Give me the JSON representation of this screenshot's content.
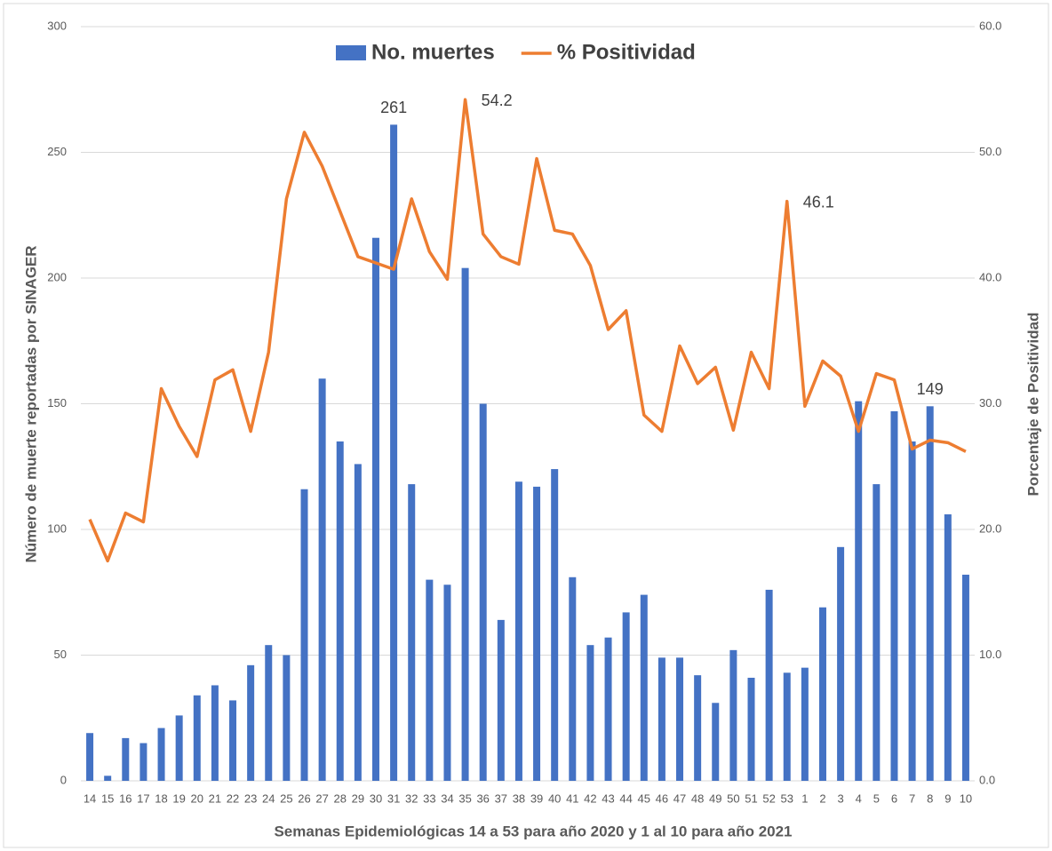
{
  "chart_data": {
    "type": "bar-line",
    "legend": "top",
    "grid": true,
    "x_label": "Semanas Epidemiológicas 14 a 53 para año 2020 y 1 al 10 para año 2021",
    "y_label": "Número de muerte reportadas por SINAGER",
    "y2_label": "Porcentaje de Positividad",
    "categories": [
      "14",
      "15",
      "16",
      "17",
      "18",
      "19",
      "20",
      "21",
      "22",
      "23",
      "24",
      "25",
      "26",
      "27",
      "28",
      "29",
      "30",
      "31",
      "32",
      "33",
      "34",
      "35",
      "36",
      "37",
      "38",
      "39",
      "40",
      "41",
      "42",
      "43",
      "44",
      "45",
      "46",
      "47",
      "48",
      "49",
      "50",
      "51",
      "52",
      "53",
      "1",
      "2",
      "3",
      "4",
      "5",
      "6",
      "7",
      "8",
      "9",
      "10"
    ],
    "ylim": [
      0,
      300
    ],
    "yticks": [
      0,
      50,
      100,
      150,
      200,
      250,
      300
    ],
    "y2lim": [
      0,
      60
    ],
    "y2ticks": [
      {
        "value": 0,
        "label": "0.0"
      },
      {
        "value": 10,
        "label": "10.0"
      },
      {
        "value": 20,
        "label": "20.0"
      },
      {
        "value": 30,
        "label": "30.0"
      },
      {
        "value": 40,
        "label": "40.0"
      },
      {
        "value": 50,
        "label": "50.0"
      },
      {
        "value": 60,
        "label": "60.0"
      }
    ],
    "series": [
      {
        "name": "No. muertes",
        "type": "bar",
        "color": "#4472c4",
        "values": [
          19,
          2,
          17,
          15,
          21,
          26,
          34,
          38,
          32,
          46,
          54,
          50,
          116,
          160,
          135,
          126,
          216,
          261,
          118,
          80,
          78,
          204,
          150,
          64,
          119,
          117,
          124,
          81,
          54,
          57,
          67,
          74,
          49,
          49,
          42,
          31,
          52,
          41,
          76,
          43,
          45,
          69,
          93,
          151,
          118,
          147,
          135,
          149,
          106,
          82
        ],
        "value_labels": [
          null,
          null,
          null,
          null,
          null,
          null,
          null,
          null,
          null,
          null,
          null,
          null,
          null,
          null,
          null,
          null,
          null,
          "261",
          null,
          null,
          null,
          null,
          null,
          null,
          null,
          null,
          null,
          null,
          null,
          null,
          null,
          null,
          null,
          null,
          null,
          null,
          null,
          null,
          null,
          null,
          null,
          null,
          null,
          null,
          null,
          null,
          null,
          "149",
          null,
          null
        ]
      },
      {
        "name": "% Positividad",
        "type": "line",
        "axis": "y2",
        "color": "#ed7d31",
        "values": [
          20.8,
          17.5,
          21.3,
          20.6,
          31.2,
          28.2,
          25.8,
          31.9,
          32.7,
          27.8,
          34.1,
          46.3,
          51.6,
          48.9,
          45.3,
          41.7,
          41.2,
          40.7,
          46.3,
          42.1,
          39.9,
          54.2,
          43.5,
          41.7,
          41.1,
          49.5,
          43.8,
          43.5,
          41.0,
          35.9,
          37.4,
          29.1,
          27.8,
          34.6,
          31.6,
          32.9,
          27.9,
          34.1,
          31.2,
          46.1,
          29.8,
          33.4,
          32.2,
          27.8,
          32.4,
          31.9,
          26.4,
          27.1,
          26.9,
          26.2
        ],
        "value_labels": [
          null,
          null,
          null,
          null,
          null,
          null,
          null,
          null,
          null,
          null,
          null,
          null,
          null,
          null,
          null,
          null,
          null,
          null,
          null,
          null,
          null,
          "54.2",
          null,
          null,
          null,
          null,
          null,
          null,
          null,
          null,
          null,
          null,
          null,
          null,
          null,
          null,
          null,
          null,
          null,
          "46.1",
          null,
          null,
          null,
          null,
          null,
          null,
          null,
          null,
          null,
          null
        ]
      }
    ]
  }
}
